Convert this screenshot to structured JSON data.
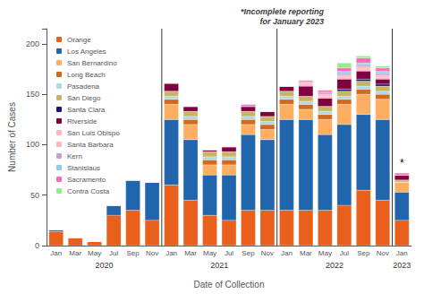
{
  "chart_data": {
    "type": "bar",
    "stacked": true,
    "categories": [
      "Jan",
      "Mar",
      "May",
      "Jul",
      "Sep",
      "Nov",
      "Jan",
      "Mar",
      "May",
      "Jul",
      "Sep",
      "Nov",
      "Jan",
      "Mar",
      "May",
      "Jul",
      "Sep",
      "Nov",
      "Jan"
    ],
    "category_years": [
      "2020",
      "2020",
      "2020",
      "2020",
      "2020",
      "2020",
      "2021",
      "2021",
      "2021",
      "2021",
      "2021",
      "2021",
      "2022",
      "2022",
      "2022",
      "2022",
      "2022",
      "2022",
      "2023"
    ],
    "series": [
      {
        "name": "Orange",
        "color": "#E8601C",
        "values": [
          14,
          8,
          4,
          30,
          35,
          25,
          60,
          45,
          30,
          25,
          35,
          35,
          35,
          35,
          35,
          40,
          55,
          45,
          25
        ]
      },
      {
        "name": "Los Angeles",
        "color": "#2166AC",
        "values": [
          2,
          0,
          0,
          10,
          30,
          38,
          65,
          60,
          40,
          45,
          75,
          70,
          90,
          90,
          75,
          80,
          75,
          80,
          28
        ]
      },
      {
        "name": "San Bernardino",
        "color": "#FDAE61",
        "values": [
          0,
          0,
          0,
          0,
          0,
          0,
          15,
          15,
          10,
          10,
          10,
          10,
          15,
          10,
          15,
          20,
          20,
          20,
          10
        ]
      },
      {
        "name": "Long Beach",
        "color": "#D2691E",
        "values": [
          0,
          0,
          0,
          0,
          0,
          0,
          5,
          5,
          5,
          5,
          5,
          5,
          5,
          5,
          5,
          5,
          5,
          5,
          0
        ]
      },
      {
        "name": "Pasadena",
        "color": "#ADD8E6",
        "values": [
          0,
          0,
          0,
          0,
          0,
          0,
          3,
          3,
          3,
          3,
          3,
          3,
          3,
          3,
          3,
          3,
          3,
          3,
          0
        ]
      },
      {
        "name": "San Diego",
        "color": "#C8B560",
        "values": [
          0,
          0,
          0,
          0,
          0,
          0,
          5,
          5,
          5,
          5,
          5,
          5,
          5,
          5,
          5,
          5,
          5,
          5,
          2
        ]
      },
      {
        "name": "Santa Clara",
        "color": "#191970",
        "values": [
          0,
          0,
          0,
          0,
          0,
          0,
          0,
          0,
          0,
          0,
          0,
          0,
          0,
          0,
          0,
          2,
          2,
          2,
          0
        ]
      },
      {
        "name": "Riverside",
        "color": "#800040",
        "values": [
          0,
          0,
          0,
          0,
          0,
          0,
          8,
          5,
          2,
          5,
          5,
          5,
          5,
          10,
          8,
          10,
          8,
          5,
          5
        ]
      },
      {
        "name": "San Luis Obispo",
        "color": "#FFB6C1",
        "values": [
          0,
          0,
          0,
          0,
          0,
          0,
          0,
          0,
          0,
          0,
          0,
          0,
          0,
          2,
          2,
          2,
          2,
          2,
          0
        ]
      },
      {
        "name": "Santa Barbara",
        "color": "#FFB6C1",
        "values": [
          0,
          0,
          0,
          0,
          0,
          0,
          0,
          0,
          0,
          0,
          0,
          0,
          0,
          2,
          2,
          2,
          2,
          2,
          0
        ]
      },
      {
        "name": "Kern",
        "color": "#C8A0D0",
        "values": [
          0,
          0,
          0,
          0,
          0,
          0,
          0,
          0,
          0,
          0,
          0,
          0,
          0,
          2,
          2,
          2,
          2,
          2,
          0
        ]
      },
      {
        "name": "Stanislaus",
        "color": "#87CEEB",
        "values": [
          0,
          0,
          0,
          0,
          0,
          0,
          0,
          0,
          0,
          0,
          0,
          0,
          0,
          0,
          0,
          2,
          2,
          2,
          0
        ]
      },
      {
        "name": "Sacramento",
        "color": "#FF69B4",
        "values": [
          0,
          0,
          0,
          0,
          0,
          0,
          0,
          0,
          0,
          0,
          2,
          0,
          0,
          0,
          2,
          3,
          5,
          3,
          2
        ]
      },
      {
        "name": "Contra Costa",
        "color": "#90EE90",
        "values": [
          0,
          0,
          0,
          0,
          0,
          0,
          0,
          0,
          0,
          0,
          0,
          0,
          0,
          0,
          0,
          5,
          2,
          2,
          0
        ]
      }
    ],
    "ylabel": "Number of Cases",
    "xlabel": "Date of Collection",
    "ylim": [
      0,
      215
    ],
    "yticks": [
      0,
      50,
      100,
      150,
      200
    ],
    "grid": false,
    "legend": "upper left",
    "annotation": "*Incomplete reporting\nfor January 2023",
    "star_label": "*"
  }
}
